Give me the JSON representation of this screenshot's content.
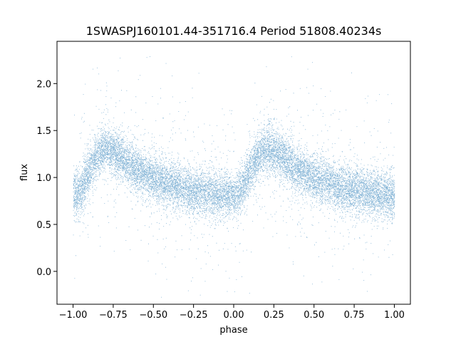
{
  "chart_data": {
    "type": "scatter",
    "title": "1SWASPJ160101.44-351716.4 Period 51808.40234s",
    "xlabel": "phase",
    "ylabel": "flux",
    "xlim": [
      -1.1,
      1.1
    ],
    "ylim": [
      -0.35,
      2.45
    ],
    "x_ticks": [
      -1.0,
      -0.75,
      -0.5,
      -0.25,
      0.0,
      0.25,
      0.5,
      0.75,
      1.0
    ],
    "x_tick_labels": [
      "−1.00",
      "−0.75",
      "−0.50",
      "−0.25",
      "0.00",
      "0.25",
      "0.50",
      "0.75",
      "1.00"
    ],
    "y_ticks": [
      0.0,
      0.5,
      1.0,
      1.5,
      2.0
    ],
    "y_tick_labels": [
      "0.0",
      "0.5",
      "1.0",
      "1.5",
      "2.0"
    ],
    "grid": false,
    "legend": "none",
    "marker_color": "#1f77b4",
    "series": [
      {
        "phase_range": [
          -1.0,
          1.0
        ],
        "cycle_mean_flux": {
          "phase": [
            0.0,
            0.05,
            0.1,
            0.15,
            0.2,
            0.25,
            0.3,
            0.35,
            0.4,
            0.5,
            0.6,
            0.7,
            0.8,
            0.9,
            1.0
          ],
          "flux": [
            0.8,
            0.88,
            1.08,
            1.25,
            1.3,
            1.28,
            1.22,
            1.15,
            1.08,
            0.99,
            0.93,
            0.88,
            0.85,
            0.82,
            0.8
          ]
        },
        "point_count": 16000,
        "scatter_sigma": 0.12,
        "outlier_fraction": 0.08
      }
    ]
  }
}
